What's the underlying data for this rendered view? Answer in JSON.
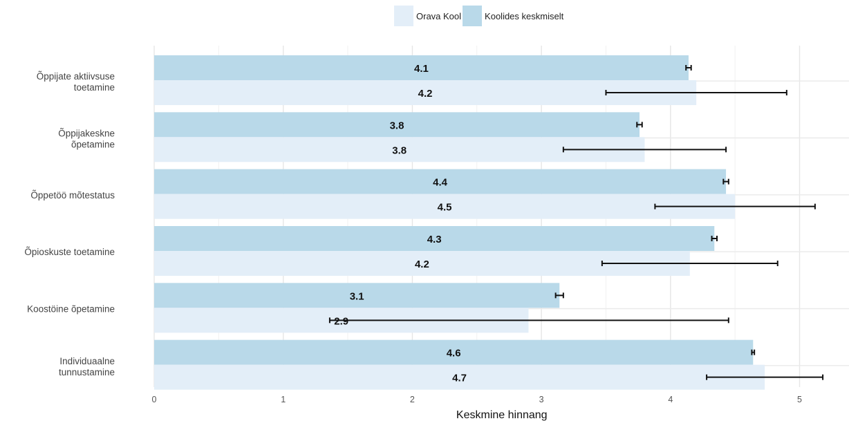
{
  "chart_data": {
    "type": "bar",
    "orientation": "horizontal",
    "categories": [
      "Õppijate aktiivsuse\ntoetamine",
      "Õppijakeskne\nõpetamine",
      "Õppetöö mõtestatus",
      "Õpioskuste toetamine",
      "Koostöine õpetamine",
      "Individuaalne\ntunnustamine"
    ],
    "series": [
      {
        "name": "Koolides keskmiselt",
        "color": "#b9d9e9",
        "values": [
          4.14,
          3.76,
          4.43,
          4.34,
          3.14,
          4.64
        ],
        "labels": [
          "4.1",
          "3.8",
          "4.4",
          "4.3",
          "3.1",
          "4.6"
        ],
        "error_low": [
          4.12,
          3.74,
          4.41,
          4.32,
          3.11,
          4.63
        ],
        "error_high": [
          4.16,
          3.78,
          4.45,
          4.36,
          3.17,
          4.65
        ]
      },
      {
        "name": "Orava Kool",
        "color": "#e3eef8",
        "values": [
          4.2,
          3.8,
          4.5,
          4.15,
          2.9,
          4.73
        ],
        "labels": [
          "4.2",
          "3.8",
          "4.5",
          "4.2",
          "2.9",
          "4.7"
        ],
        "error_low": [
          3.5,
          3.17,
          3.88,
          3.47,
          1.36,
          4.28
        ],
        "error_high": [
          4.9,
          4.43,
          5.12,
          4.83,
          4.45,
          5.18
        ]
      }
    ],
    "xlabel": "Keskmine hinnang",
    "ylabel": "",
    "xlim": [
      0,
      5.35
    ],
    "xticks": [
      0,
      1,
      2,
      3,
      4,
      5
    ],
    "grid": true,
    "legend_position": "top"
  },
  "legend": {
    "items": [
      {
        "label": "Orava Kool",
        "color": "#e3eef8"
      },
      {
        "label": "Koolides keskmiselt",
        "color": "#b9d9e9"
      }
    ]
  }
}
